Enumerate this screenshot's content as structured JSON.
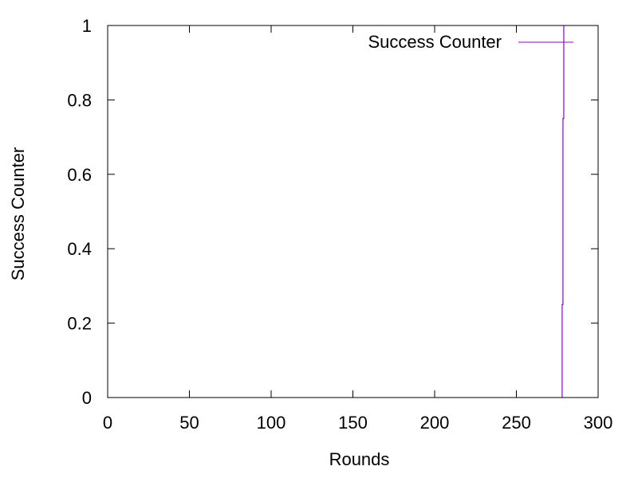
{
  "chart_data": {
    "type": "line",
    "title": "",
    "xlabel": "Rounds",
    "ylabel": "Success Counter",
    "xlim": [
      0,
      300
    ],
    "ylim": [
      0,
      1
    ],
    "x_ticks": [
      0,
      50,
      100,
      150,
      200,
      250,
      300
    ],
    "y_ticks": [
      0,
      0.2,
      0.4,
      0.6,
      0.8,
      1
    ],
    "x_tick_labels": [
      "0",
      "50",
      "100",
      "150",
      "200",
      "250",
      "300"
    ],
    "y_tick_labels": [
      "0",
      "0.2",
      "0.4",
      "0.6",
      "0.8",
      "1"
    ],
    "grid": false,
    "legend_position": "top-right",
    "series": [
      {
        "name": "Success Counter",
        "color": "#9400d3",
        "points": [
          {
            "x": 278,
            "y": 0
          },
          {
            "x": 278,
            "y": 0.25
          },
          {
            "x": 278.5,
            "y": 0.25
          },
          {
            "x": 278.5,
            "y": 0.75
          },
          {
            "x": 279,
            "y": 0.75
          },
          {
            "x": 279,
            "y": 1
          }
        ]
      }
    ]
  }
}
